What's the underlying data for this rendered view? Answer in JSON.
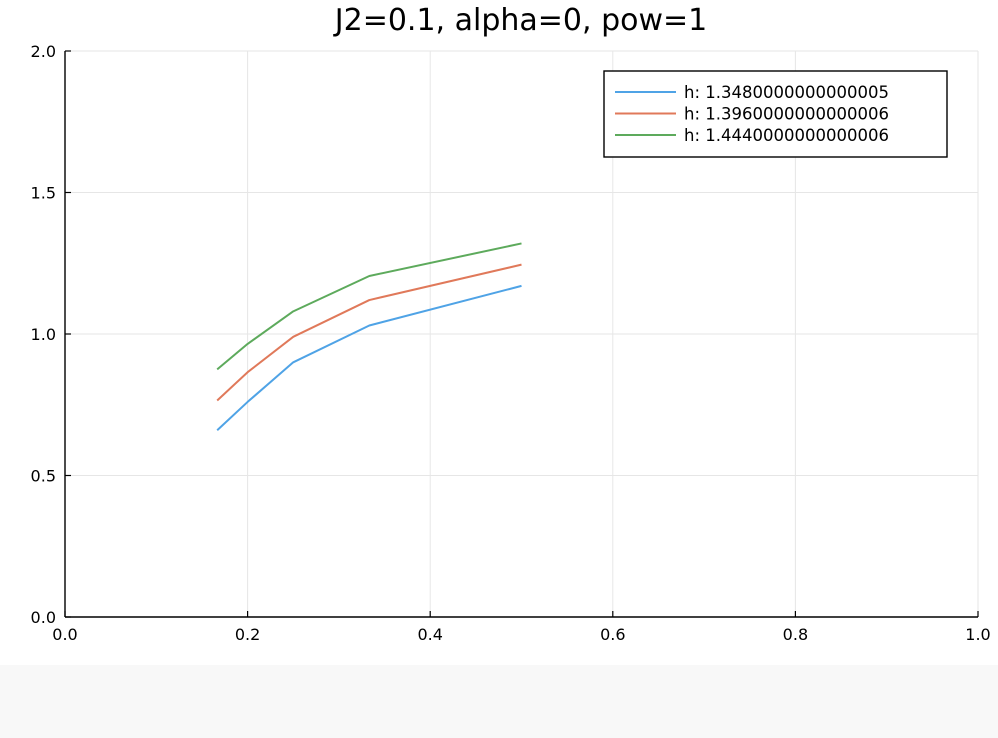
{
  "chart_data": {
    "type": "line",
    "title": "J2=0.1, alpha=0, pow=1",
    "xlabel": "",
    "ylabel": "",
    "xlim": [
      0.0,
      1.0
    ],
    "ylim": [
      0.0,
      2.0
    ],
    "x_ticks": [
      "0.0",
      "0.2",
      "0.4",
      "0.6",
      "0.8",
      "1.0"
    ],
    "y_ticks": [
      "0.0",
      "0.5",
      "1.0",
      "1.5",
      "2.0"
    ],
    "grid": true,
    "legend_position": "top-right",
    "x": [
      0.1667,
      0.2,
      0.25,
      0.3333,
      0.5
    ],
    "series": [
      {
        "name": "h: 1.3480000000000005",
        "color": "#4fa3e6",
        "values": [
          0.66,
          0.76,
          0.9,
          1.03,
          1.17
        ]
      },
      {
        "name": "h: 1.3960000000000006",
        "color": "#e0795a",
        "values": [
          0.765,
          0.865,
          0.99,
          1.12,
          1.245
        ]
      },
      {
        "name": "h: 1.4440000000000006",
        "color": "#5daa5c",
        "values": [
          0.875,
          0.965,
          1.08,
          1.205,
          1.32
        ]
      }
    ]
  }
}
